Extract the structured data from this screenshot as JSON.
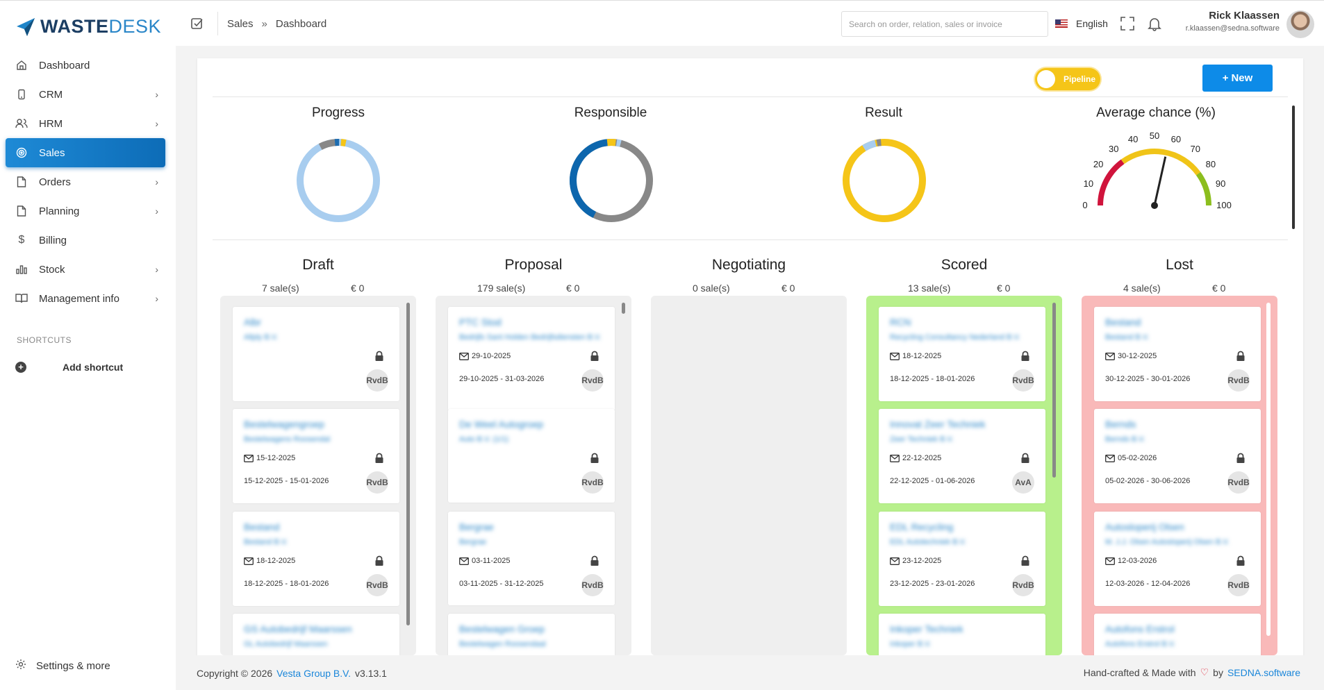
{
  "brand": {
    "logo_bold": "WASTE",
    "logo_light": "DESK"
  },
  "sidebar": {
    "items": [
      {
        "label": "Dashboard",
        "icon": "home-icon",
        "has_children": false
      },
      {
        "label": "CRM",
        "icon": "phone-icon",
        "has_children": true
      },
      {
        "label": "HRM",
        "icon": "users-icon",
        "has_children": true
      },
      {
        "label": "Sales",
        "icon": "target-icon",
        "has_children": false,
        "active": true
      },
      {
        "label": "Orders",
        "icon": "file-icon",
        "has_children": true
      },
      {
        "label": "Planning",
        "icon": "file-icon",
        "has_children": true
      },
      {
        "label": "Billing",
        "icon": "dollar-icon",
        "has_children": false
      },
      {
        "label": "Stock",
        "icon": "bar-chart-icon",
        "has_children": true
      },
      {
        "label": "Management info",
        "icon": "book-icon",
        "has_children": true
      }
    ],
    "shortcuts_title": "SHORTCUTS",
    "add_shortcut": "Add shortcut",
    "settings": "Settings & more"
  },
  "topbar": {
    "breadcrumb": [
      "Sales",
      "Dashboard"
    ],
    "breadcrumb_sep": "»",
    "search_placeholder": "Search on order, relation, sales or invoice",
    "language": "English",
    "user_name": "Rick Klaassen",
    "user_email": "r.klaassen@sedna.software"
  },
  "dashboard": {
    "pipeline_toggle": "Pipeline",
    "new_button": "New",
    "kpis": [
      {
        "title": "Progress"
      },
      {
        "title": "Responsible"
      },
      {
        "title": "Result"
      },
      {
        "title": "Average chance (%)"
      }
    ],
    "gauge": {
      "ticks": [
        "0",
        "10",
        "20",
        "30",
        "40",
        "50",
        "60",
        "70",
        "80",
        "90",
        "100"
      ],
      "value": 57
    },
    "columns": [
      {
        "title": "Draft",
        "count": "7 sale(s)",
        "amount": "€ 0",
        "color": "grey",
        "sales": [
          {
            "name": "Albr",
            "relation": "Allply B.V.",
            "date": "",
            "range": "",
            "owner": "RvdB"
          },
          {
            "name": "Bestelwagengroep",
            "relation": "Bestelwagens Roosendal",
            "date": "15-12-2025",
            "range": "15-12-2025 - 15-01-2026",
            "owner": "RvdB"
          },
          {
            "name": "Bestand",
            "relation": "Bestand B.V.",
            "date": "18-12-2025",
            "range": "18-12-2025 - 18-01-2026",
            "owner": "RvdB"
          },
          {
            "name": "GS Autobedrijf Maarssen",
            "relation": "GL Autobedrijf Maarssen",
            "date": "",
            "range": "",
            "owner": ""
          }
        ]
      },
      {
        "title": "Proposal",
        "count": "179 sale(s)",
        "amount": "€ 0",
        "color": "grey",
        "sales": [
          {
            "name": "PTC Stod",
            "relation": "Bedrijfs Sant Holden Bedrijfsdiensten B.V.",
            "date": "29-10-2025",
            "range": "29-10-2025 - 31-03-2026",
            "owner": "RvdB"
          },
          {
            "name": "De Weel Autogroep",
            "relation": "Auto B.V. (1/1)",
            "date": "",
            "range": "",
            "owner": "RvdB"
          },
          {
            "name": "Bergrae",
            "relation": "Bergrae",
            "date": "03-11-2025",
            "range": "03-11-2025 - 31-12-2025",
            "owner": "RvdB"
          },
          {
            "name": "Bestelwagen Groep",
            "relation": "Bestelwagen Roosendaal",
            "date": "",
            "range": "",
            "owner": ""
          }
        ]
      },
      {
        "title": "Negotiating",
        "count": "0 sale(s)",
        "amount": "€ 0",
        "color": "grey",
        "sales": []
      },
      {
        "title": "Scored",
        "count": "13 sale(s)",
        "amount": "€ 0",
        "color": "green",
        "sales": [
          {
            "name": "RCN",
            "relation": "Recycling Consultancy Nederland B.V.",
            "date": "18-12-2025",
            "range": "18-12-2025 - 18-01-2026",
            "owner": "RvdB"
          },
          {
            "name": "Innovat Zeer Techniek",
            "relation": "Zeer Techniek B.V.",
            "date": "22-12-2025",
            "range": "22-12-2025 - 01-06-2026",
            "owner": "AvA"
          },
          {
            "name": "EDL Recycling",
            "relation": "EDL Autotechniek B.V.",
            "date": "23-12-2025",
            "range": "23-12-2025 - 23-01-2026",
            "owner": "RvdB"
          },
          {
            "name": "Inkoper Techniek",
            "relation": "Inkoper B.V.",
            "date": "",
            "range": "",
            "owner": ""
          }
        ]
      },
      {
        "title": "Lost",
        "count": "4 sale(s)",
        "amount": "€ 0",
        "color": "red",
        "sales": [
          {
            "name": "Bestand",
            "relation": "Bestand B.V.",
            "date": "30-12-2025",
            "range": "30-12-2025 - 30-01-2026",
            "owner": "RvdB"
          },
          {
            "name": "Bernds",
            "relation": "Bernds B.V.",
            "date": "05-02-2026",
            "range": "05-02-2026 - 30-06-2026",
            "owner": "RvdB"
          },
          {
            "name": "Autosloperij Olsen",
            "relation": "M. J.J. Olsen Autosloperij Olsen B.V.",
            "date": "12-03-2026",
            "range": "12-03-2026 - 12-04-2026",
            "owner": "RvdB"
          },
          {
            "name": "Autofons Erstrol",
            "relation": "Autofons Erstrol B.V.",
            "date": "",
            "range": "",
            "owner": ""
          }
        ]
      }
    ]
  },
  "footer": {
    "copyright": "Copyright © 2026",
    "company": "Vesta Group B.V.",
    "version": "v3.13.1",
    "made_with": "Hand-crafted & Made with",
    "by": "by",
    "vendor": "SEDNA.software"
  }
}
